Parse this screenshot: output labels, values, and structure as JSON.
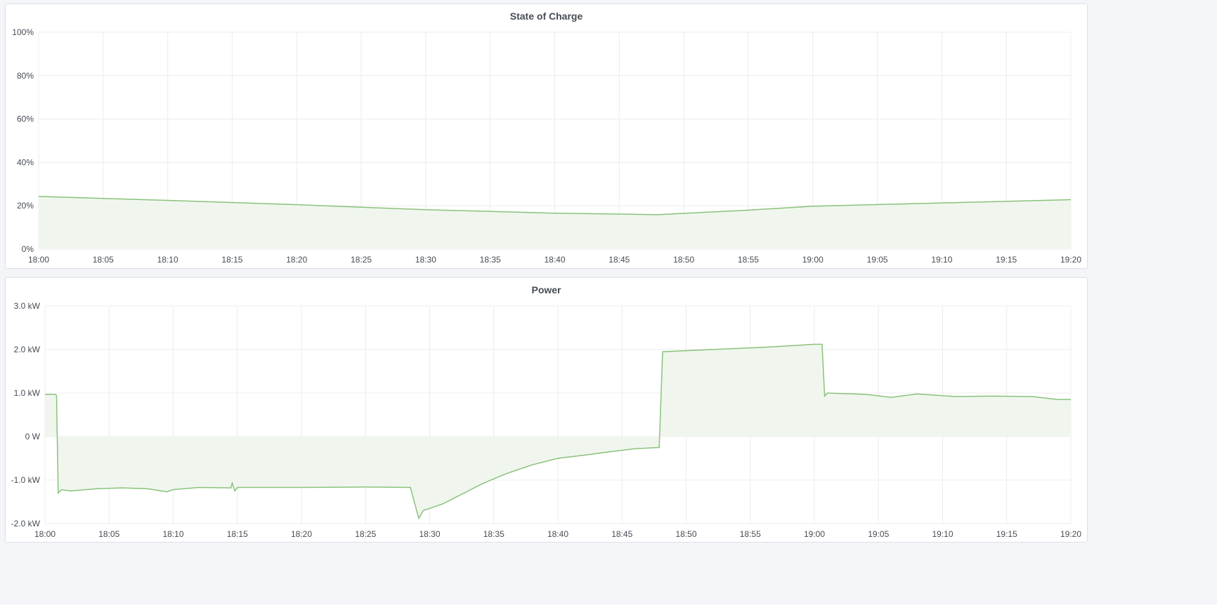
{
  "colors": {
    "series": "#8ac27a",
    "fill": "#f0f6ee",
    "grid": "#ececec",
    "background": "#f4f5f8"
  },
  "chart_data": [
    {
      "type": "area",
      "title": "State of Charge",
      "xlabel": "",
      "ylabel": "",
      "x_ticks": [
        "18:00",
        "18:05",
        "18:10",
        "18:15",
        "18:20",
        "18:25",
        "18:30",
        "18:35",
        "18:40",
        "18:45",
        "18:50",
        "18:55",
        "19:00",
        "19:05",
        "19:10",
        "19:15",
        "19:20"
      ],
      "y_ticks": [
        "0%",
        "20%",
        "40%",
        "60%",
        "80%",
        "100%"
      ],
      "y_tick_values": [
        0,
        20,
        40,
        60,
        80,
        100
      ],
      "xlim": [
        "18:00",
        "19:20"
      ],
      "ylim": [
        0,
        100
      ],
      "y_unit": "%",
      "grid": true,
      "series": [
        {
          "x": [
            "18:00",
            "18:10",
            "18:20",
            "18:30",
            "18:40",
            "18:48",
            "18:55",
            "19:00",
            "19:10",
            "19:20"
          ],
          "y": [
            24.3,
            22.5,
            20.5,
            18.2,
            16.6,
            15.9,
            18.0,
            19.8,
            21.3,
            22.8
          ]
        }
      ]
    },
    {
      "type": "area",
      "title": "Power",
      "xlabel": "",
      "ylabel": "",
      "x_ticks": [
        "18:00",
        "18:05",
        "18:10",
        "18:15",
        "18:20",
        "18:25",
        "18:30",
        "18:35",
        "18:40",
        "18:45",
        "18:50",
        "18:55",
        "19:00",
        "19:05",
        "19:10",
        "19:15",
        "19:20"
      ],
      "y_ticks": [
        "-2.0 kW",
        "-1.0 kW",
        "0 W",
        "1.0 kW",
        "2.0 kW",
        "3.0 kW"
      ],
      "y_tick_values": [
        -2,
        -1,
        0,
        1,
        2,
        3
      ],
      "xlim": [
        "18:00",
        "19:20"
      ],
      "ylim": [
        -2,
        3
      ],
      "y_unit": "kW",
      "grid": true,
      "series": [
        {
          "x": [
            "18:00:00",
            "18:00:48",
            "18:00:54",
            "18:01:02",
            "18:01:18",
            "18:02:00",
            "18:04:00",
            "18:06:00",
            "18:08:00",
            "18:09:30",
            "18:10:00",
            "18:12:00",
            "18:14:30",
            "18:14:36",
            "18:14:48",
            "18:15:00",
            "18:20:00",
            "18:25:00",
            "18:28:30",
            "18:29:09",
            "18:29:30",
            "18:30:00",
            "18:31:00",
            "18:32:00",
            "18:33:00",
            "18:34:00",
            "18:35:00",
            "18:36:00",
            "18:37:00",
            "18:38:00",
            "18:40:00",
            "18:42:00",
            "18:44:00",
            "18:46:00",
            "18:47:54",
            "18:48:10",
            "18:52:00",
            "18:56:00",
            "19:00:00",
            "19:00:36",
            "19:00:48",
            "19:01:00",
            "19:04:00",
            "19:06:00",
            "19:08:00",
            "19:11:00",
            "19:14:00",
            "19:17:00",
            "19:19:00",
            "19:20:00"
          ],
          "y": [
            0.97,
            0.97,
            0.95,
            -1.3,
            -1.22,
            -1.25,
            -1.2,
            -1.18,
            -1.2,
            -1.27,
            -1.22,
            -1.17,
            -1.18,
            -1.07,
            -1.25,
            -1.17,
            -1.17,
            -1.16,
            -1.17,
            -1.88,
            -1.7,
            -1.65,
            -1.55,
            -1.4,
            -1.25,
            -1.1,
            -0.97,
            -0.85,
            -0.75,
            -0.65,
            -0.5,
            -0.43,
            -0.35,
            -0.28,
            -0.25,
            1.95,
            2.0,
            2.05,
            2.12,
            2.12,
            0.93,
            1.0,
            0.97,
            0.9,
            0.98,
            0.92,
            0.93,
            0.92,
            0.85,
            0.85
          ]
        }
      ]
    }
  ]
}
